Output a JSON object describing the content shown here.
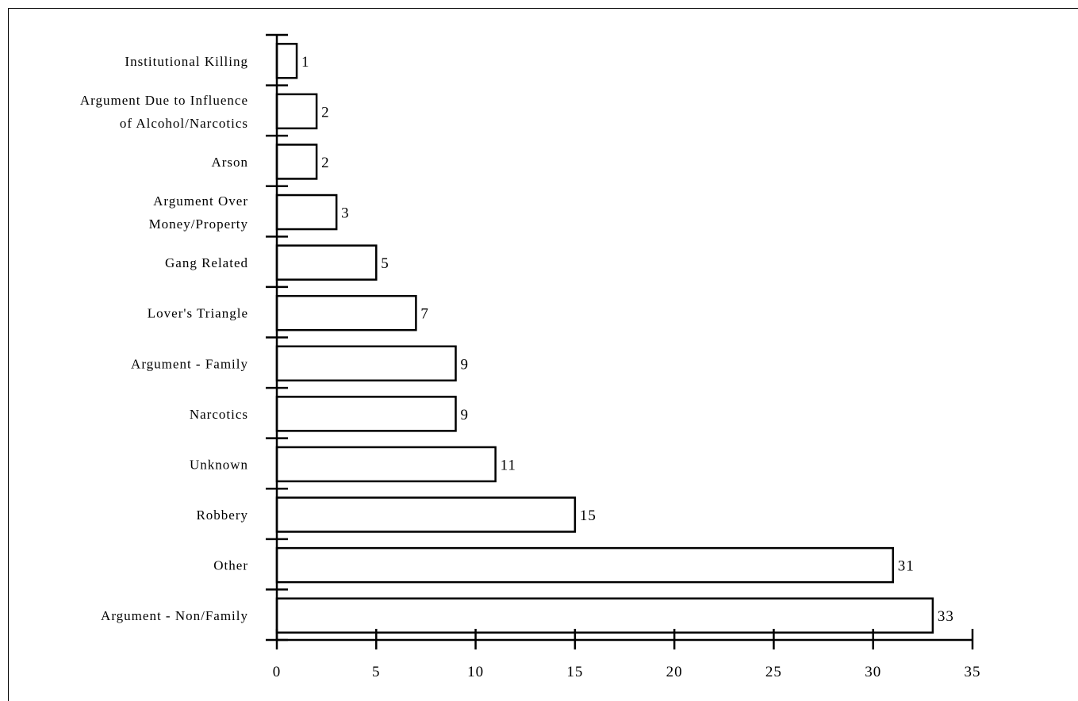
{
  "chart_data": {
    "type": "bar",
    "orientation": "horizontal",
    "title": "",
    "xlabel": "",
    "ylabel": "",
    "categories": [
      [
        "Institutional Killing"
      ],
      [
        "Argument Due to Influence",
        "of Alcohol/Narcotics"
      ],
      [
        "Arson"
      ],
      [
        "Argument Over",
        "Money/Property"
      ],
      [
        "Gang Related"
      ],
      [
        "Lover's Triangle"
      ],
      [
        "Argument - Family"
      ],
      [
        "Narcotics"
      ],
      [
        "Unknown"
      ],
      [
        "Robbery"
      ],
      [
        "Other"
      ],
      [
        "Argument - Non/Family"
      ]
    ],
    "values": [
      1,
      2,
      2,
      3,
      5,
      7,
      9,
      9,
      11,
      15,
      31,
      33
    ],
    "value_labels": [
      "1",
      "2",
      "2",
      "3",
      "5",
      "7",
      "9",
      "9",
      "11",
      "15",
      "31",
      "33"
    ],
    "xlim": [
      0,
      35
    ],
    "xticks": [
      "0",
      "5",
      "10",
      "15",
      "20",
      "25",
      "30",
      "35"
    ],
    "grid": false,
    "legend": "none",
    "colors": {
      "bar_fill": "#ffffff",
      "bar_stroke": "#000000",
      "axis": "#000000"
    }
  }
}
